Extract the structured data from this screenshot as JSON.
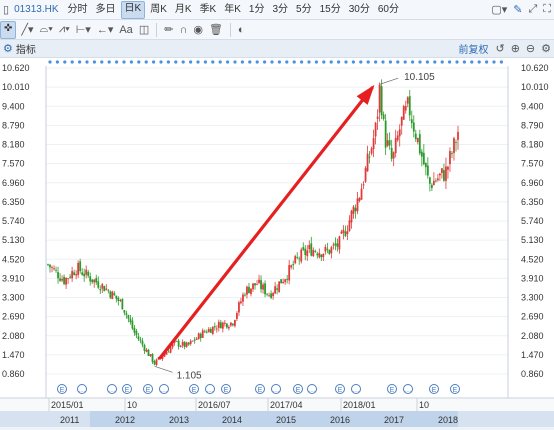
{
  "toolbar": {
    "ticker": "01313.HK",
    "periods": [
      "分时",
      "多日",
      "日K",
      "周K",
      "月K",
      "季K",
      "年K",
      "1分",
      "3分",
      "5分",
      "15分",
      "30分",
      "60分"
    ],
    "active_period": "日K"
  },
  "indicator_bar": {
    "label": "指标",
    "adjust_label": "前复权"
  },
  "chart_data": {
    "type": "candlestick",
    "ticker": "01313.HK",
    "y_ticks": [
      "10.620",
      "10.010",
      "9.400",
      "8.790",
      "8.180",
      "7.570",
      "6.960",
      "6.350",
      "5.740",
      "5.130",
      "4.520",
      "3.910",
      "3.300",
      "2.690",
      "2.080",
      "1.470",
      "0.860"
    ],
    "ylim": [
      0.86,
      10.62
    ],
    "x_upper_labels": [
      "2015/01",
      "10",
      "2016/07",
      "2017/04",
      "2018/01",
      "10"
    ],
    "x_lower_labels": [
      "2011",
      "2012",
      "2013",
      "2014",
      "2015",
      "2016",
      "2017",
      "2018"
    ],
    "annotations": {
      "high": "10.105",
      "low": "1.105"
    },
    "price_path": [
      [
        0.0,
        4.35
      ],
      [
        0.04,
        3.85
      ],
      [
        0.07,
        4.25
      ],
      [
        0.1,
        3.95
      ],
      [
        0.14,
        3.6
      ],
      [
        0.18,
        3.1
      ],
      [
        0.21,
        2.2
      ],
      [
        0.24,
        1.6
      ],
      [
        0.26,
        1.2
      ],
      [
        0.28,
        1.45
      ],
      [
        0.31,
        1.85
      ],
      [
        0.34,
        1.75
      ],
      [
        0.38,
        2.2
      ],
      [
        0.42,
        2.45
      ],
      [
        0.45,
        2.5
      ],
      [
        0.48,
        3.5
      ],
      [
        0.51,
        3.75
      ],
      [
        0.54,
        3.4
      ],
      [
        0.58,
        4.0
      ],
      [
        0.61,
        4.55
      ],
      [
        0.64,
        4.85
      ],
      [
        0.68,
        4.75
      ],
      [
        0.71,
        5.0
      ],
      [
        0.73,
        5.6
      ],
      [
        0.76,
        6.6
      ],
      [
        0.78,
        7.6
      ],
      [
        0.8,
        8.7
      ],
      [
        0.81,
        10.1
      ],
      [
        0.82,
        8.5
      ],
      [
        0.84,
        7.6
      ],
      [
        0.86,
        8.8
      ],
      [
        0.88,
        9.4
      ],
      [
        0.9,
        8.4
      ],
      [
        0.92,
        7.4
      ],
      [
        0.93,
        6.9
      ],
      [
        0.95,
        7.1
      ],
      [
        0.97,
        7.3
      ],
      [
        0.99,
        8.1
      ],
      [
        1.0,
        8.6
      ]
    ]
  },
  "colors": {
    "up": "#e03a3a",
    "down": "#2a9a2a",
    "arrow": "#e62020",
    "dots": "#4a90e2",
    "event": "#4a7fc1"
  }
}
